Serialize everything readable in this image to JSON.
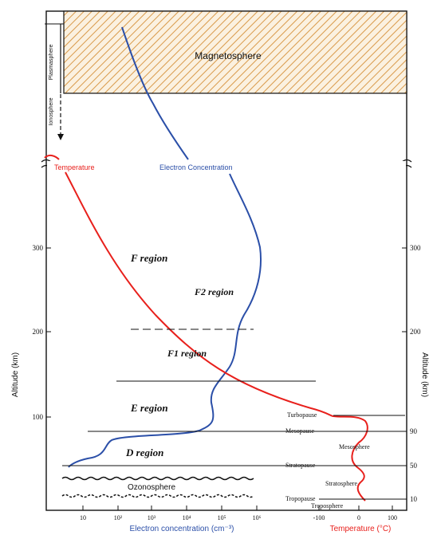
{
  "diagram": {
    "magnetosphere_label": "Magnetosphere",
    "plasmasphere_label": "Plasmasphere",
    "ionosphere_label": "Ionosphere",
    "temperature_top_label": "Temperature",
    "electron_top_label": "Electron Concentration",
    "regions": {
      "f": "F region",
      "f2": "F2 region",
      "f1": "F1 region",
      "e": "E region",
      "d": "D region"
    },
    "ozonosphere_label": "Ozonosphere",
    "atmosphere_layers": {
      "turbopause": "Turbopause",
      "mesopause": "Mesopause",
      "mesosphere": "Mesosphere",
      "stratopause": "Stratopause",
      "stratosphere": "Stratosphere",
      "tropopause": "Tropopause",
      "troposphere": "Troposphere"
    },
    "left_axis": {
      "title": "Altitude (km)",
      "ticks": [
        "100",
        "200",
        "300"
      ]
    },
    "right_axis": {
      "title": "Altitude (km)",
      "ticks": [
        "10",
        "50",
        "90",
        "200",
        "300"
      ]
    },
    "bottom_axis_left": {
      "title": "Electron concentration (cm⁻³)",
      "ticks": [
        "10",
        "10²",
        "10³",
        "10⁴",
        "10⁵",
        "10⁶"
      ]
    },
    "bottom_axis_right": {
      "title": "Temperature (°C)",
      "ticks": [
        "-100",
        "0",
        "100"
      ]
    },
    "colors": {
      "electron": "#2b4fa8",
      "temperature": "#e8201c",
      "hatch": "#d99a4a",
      "frame": "#111111"
    }
  }
}
